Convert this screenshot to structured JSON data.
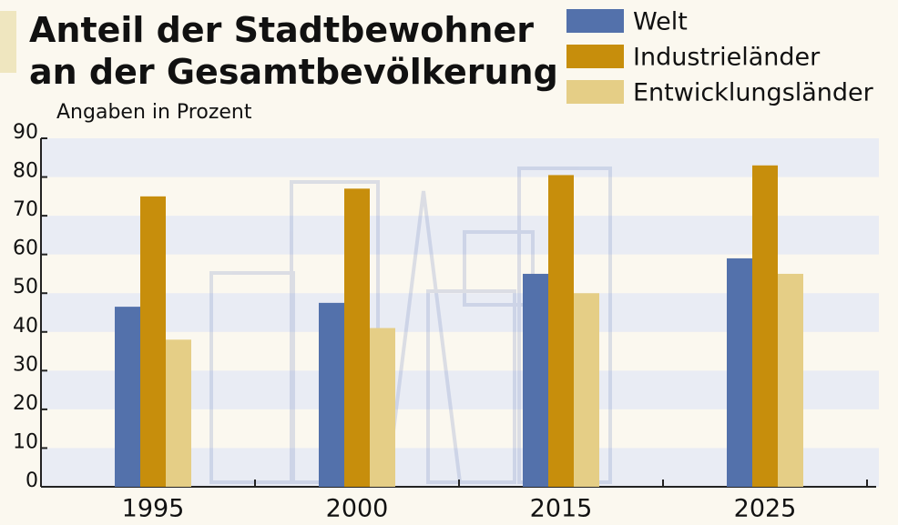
{
  "chart_data": {
    "type": "bar",
    "title": "Anteil der Stadtbewohner",
    "title_line2": "an der Gesamtbevölkerung",
    "subtitle": "Angaben in Prozent",
    "categories": [
      "1995",
      "2000",
      "2015",
      "2025"
    ],
    "series": [
      {
        "name": "Welt",
        "color": "#5371ab",
        "values": [
          46.5,
          47.5,
          55,
          59
        ]
      },
      {
        "name": "Industrieländer",
        "color": "#c78e0c",
        "values": [
          75,
          77,
          80.5,
          83
        ]
      },
      {
        "name": "Entwicklungsländer",
        "color": "#e5ce86",
        "values": [
          38,
          41,
          50,
          55
        ]
      }
    ],
    "ylim": [
      0,
      90
    ],
    "yticks": [
      0,
      10,
      20,
      30,
      40,
      50,
      60,
      70,
      80,
      90
    ],
    "grid": "bands"
  }
}
